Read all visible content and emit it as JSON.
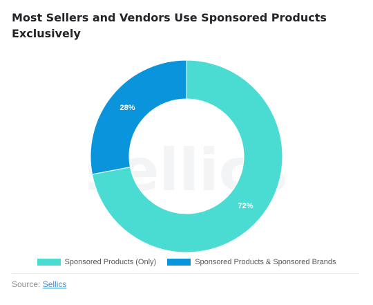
{
  "header": {
    "title": "Most Sellers and Vendors Use Sponsored Products Exclusively"
  },
  "watermark": "sellics",
  "chart_data": {
    "type": "pie",
    "variant": "donut",
    "title": "Most Sellers and Vendors Use Sponsored Products Exclusively",
    "categories": [
      "Sponsored Products (Only)",
      "Sponsored Products & Sponsored Brands"
    ],
    "values": [
      72,
      28
    ],
    "labels": [
      "72%",
      "28%"
    ],
    "colors": [
      "#4ADBD2",
      "#0A94DC"
    ],
    "legend_position": "bottom"
  },
  "footer": {
    "source_label": "Source:",
    "source_link": "Sellics"
  }
}
